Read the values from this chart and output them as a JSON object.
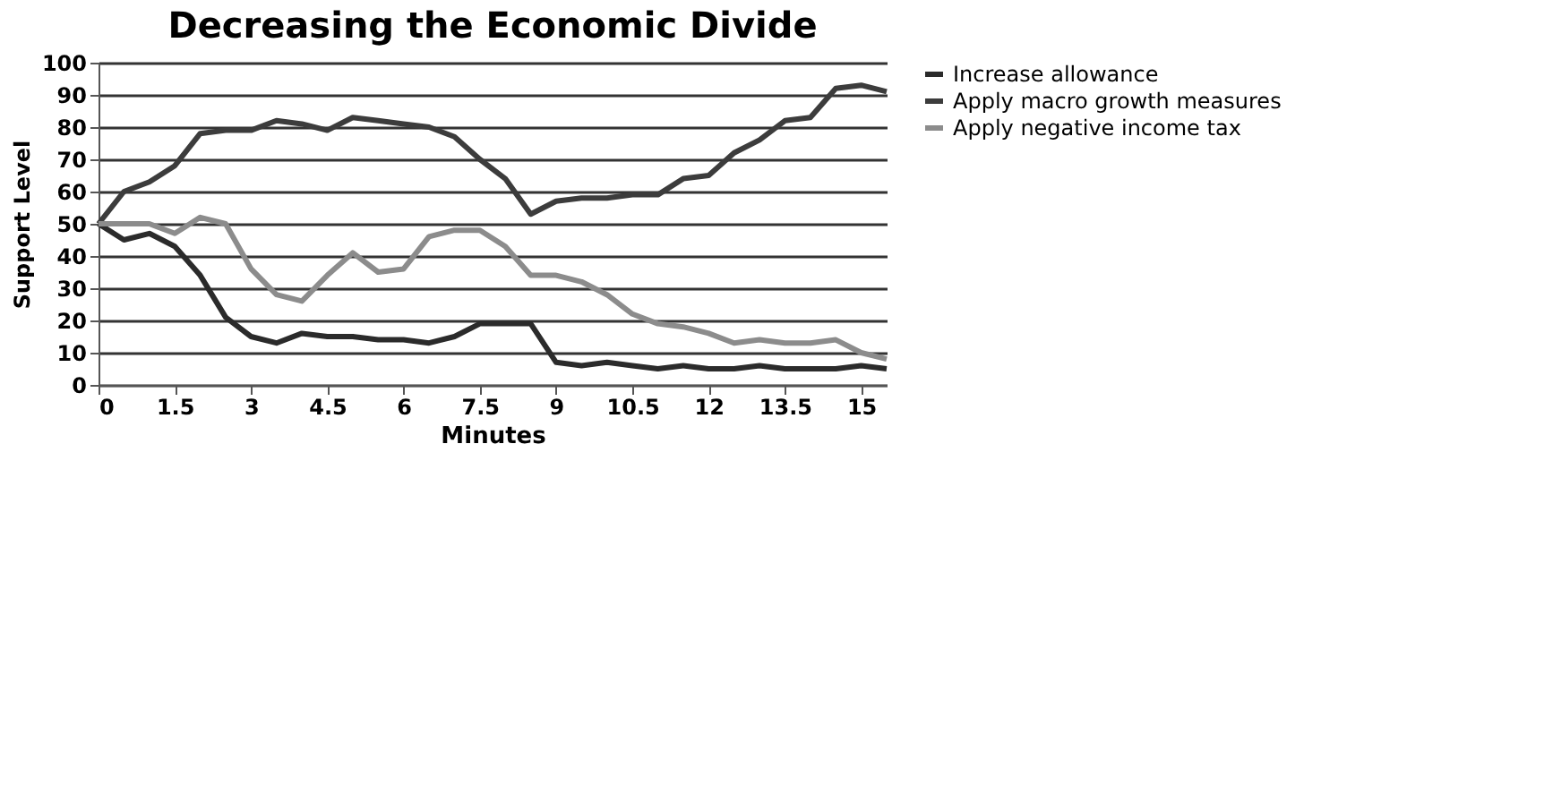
{
  "chart_data": {
    "type": "line",
    "title": "Decreasing the Economic Divide",
    "xlabel": "Minutes",
    "ylabel": "Support Level",
    "x": [
      0,
      0.5,
      1,
      1.5,
      2,
      2.5,
      3,
      3.5,
      4,
      4.5,
      5,
      5.5,
      6,
      6.5,
      7,
      7.5,
      8,
      8.5,
      9,
      9.5,
      10,
      10.5,
      11,
      11.5,
      12,
      12.5,
      13,
      13.5,
      14,
      14.5,
      15,
      15.5
    ],
    "series": [
      {
        "name": "Increase allowance",
        "color": "#2b2b2b",
        "values": [
          50,
          45,
          47,
          43,
          34,
          21,
          15,
          13,
          16,
          15,
          15,
          14,
          14,
          13,
          15,
          19,
          19,
          19,
          7,
          6,
          7,
          6,
          5,
          6,
          5,
          5,
          6,
          5,
          5,
          5,
          6,
          5
        ]
      },
      {
        "name": "Apply macro growth  measures",
        "color": "#3c3c3c",
        "values": [
          50,
          60,
          63,
          68,
          78,
          79,
          79,
          82,
          81,
          79,
          83,
          82,
          81,
          80,
          77,
          70,
          64,
          53,
          57,
          58,
          58,
          59,
          59,
          64,
          65,
          72,
          76,
          82,
          83,
          92,
          93,
          91
        ]
      },
      {
        "name": "Apply negative income tax",
        "color": "#8c8c8c",
        "values": [
          50,
          50,
          50,
          47,
          52,
          50,
          36,
          28,
          26,
          34,
          41,
          35,
          36,
          46,
          48,
          48,
          43,
          34,
          34,
          32,
          28,
          22,
          19,
          18,
          16,
          13,
          14,
          13,
          13,
          14,
          10,
          8
        ]
      }
    ],
    "xlim": [
      0,
      15.5
    ],
    "xticks": [
      0,
      1.5,
      3,
      4.5,
      6,
      7.5,
      9,
      10.5,
      12,
      13.5,
      15
    ],
    "ylim": [
      0,
      100
    ],
    "yticks": [
      0,
      10,
      20,
      30,
      40,
      50,
      60,
      70,
      80,
      90,
      100
    ],
    "grid": "y",
    "legend": "right",
    "marker": "none",
    "line_style": "solid"
  }
}
